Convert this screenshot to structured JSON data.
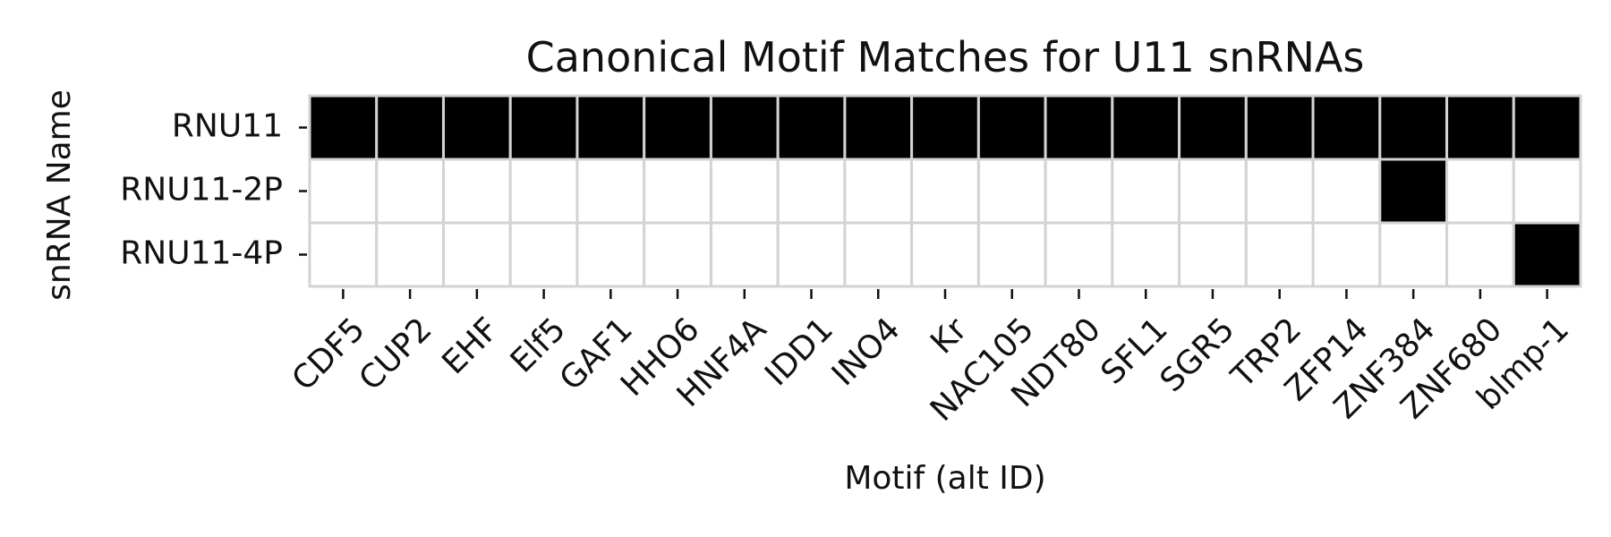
{
  "chart_data": {
    "type": "heatmap",
    "title": "Canonical Motif Matches for U11 snRNAs",
    "xlabel": "Motif (alt ID)",
    "ylabel": "snRNA Name",
    "x_categories": [
      "CDF5",
      "CUP2",
      "EHF",
      "Elf5",
      "GAF1",
      "HHO6",
      "HNF4A",
      "IDD1",
      "INO4",
      "Kr",
      "NAC105",
      "NDT80",
      "SFL1",
      "SGR5",
      "TRP2",
      "ZFP14",
      "ZNF384",
      "ZNF680",
      "blmp-1"
    ],
    "y_categories": [
      "RNU11",
      "RNU11-2P",
      "RNU11-4P"
    ],
    "values": [
      [
        1,
        1,
        1,
        1,
        1,
        1,
        1,
        1,
        1,
        1,
        1,
        1,
        1,
        1,
        1,
        1,
        1,
        1,
        1
      ],
      [
        0,
        0,
        0,
        0,
        0,
        0,
        0,
        0,
        0,
        0,
        0,
        0,
        0,
        0,
        0,
        0,
        1,
        0,
        0
      ],
      [
        0,
        0,
        0,
        0,
        0,
        0,
        0,
        0,
        0,
        0,
        0,
        0,
        0,
        0,
        0,
        0,
        0,
        0,
        1
      ]
    ],
    "colors": {
      "match": "#000000",
      "no_match": "#ffffff",
      "cell_border": "#d3d3d3"
    },
    "grid": true,
    "legend": "none"
  }
}
